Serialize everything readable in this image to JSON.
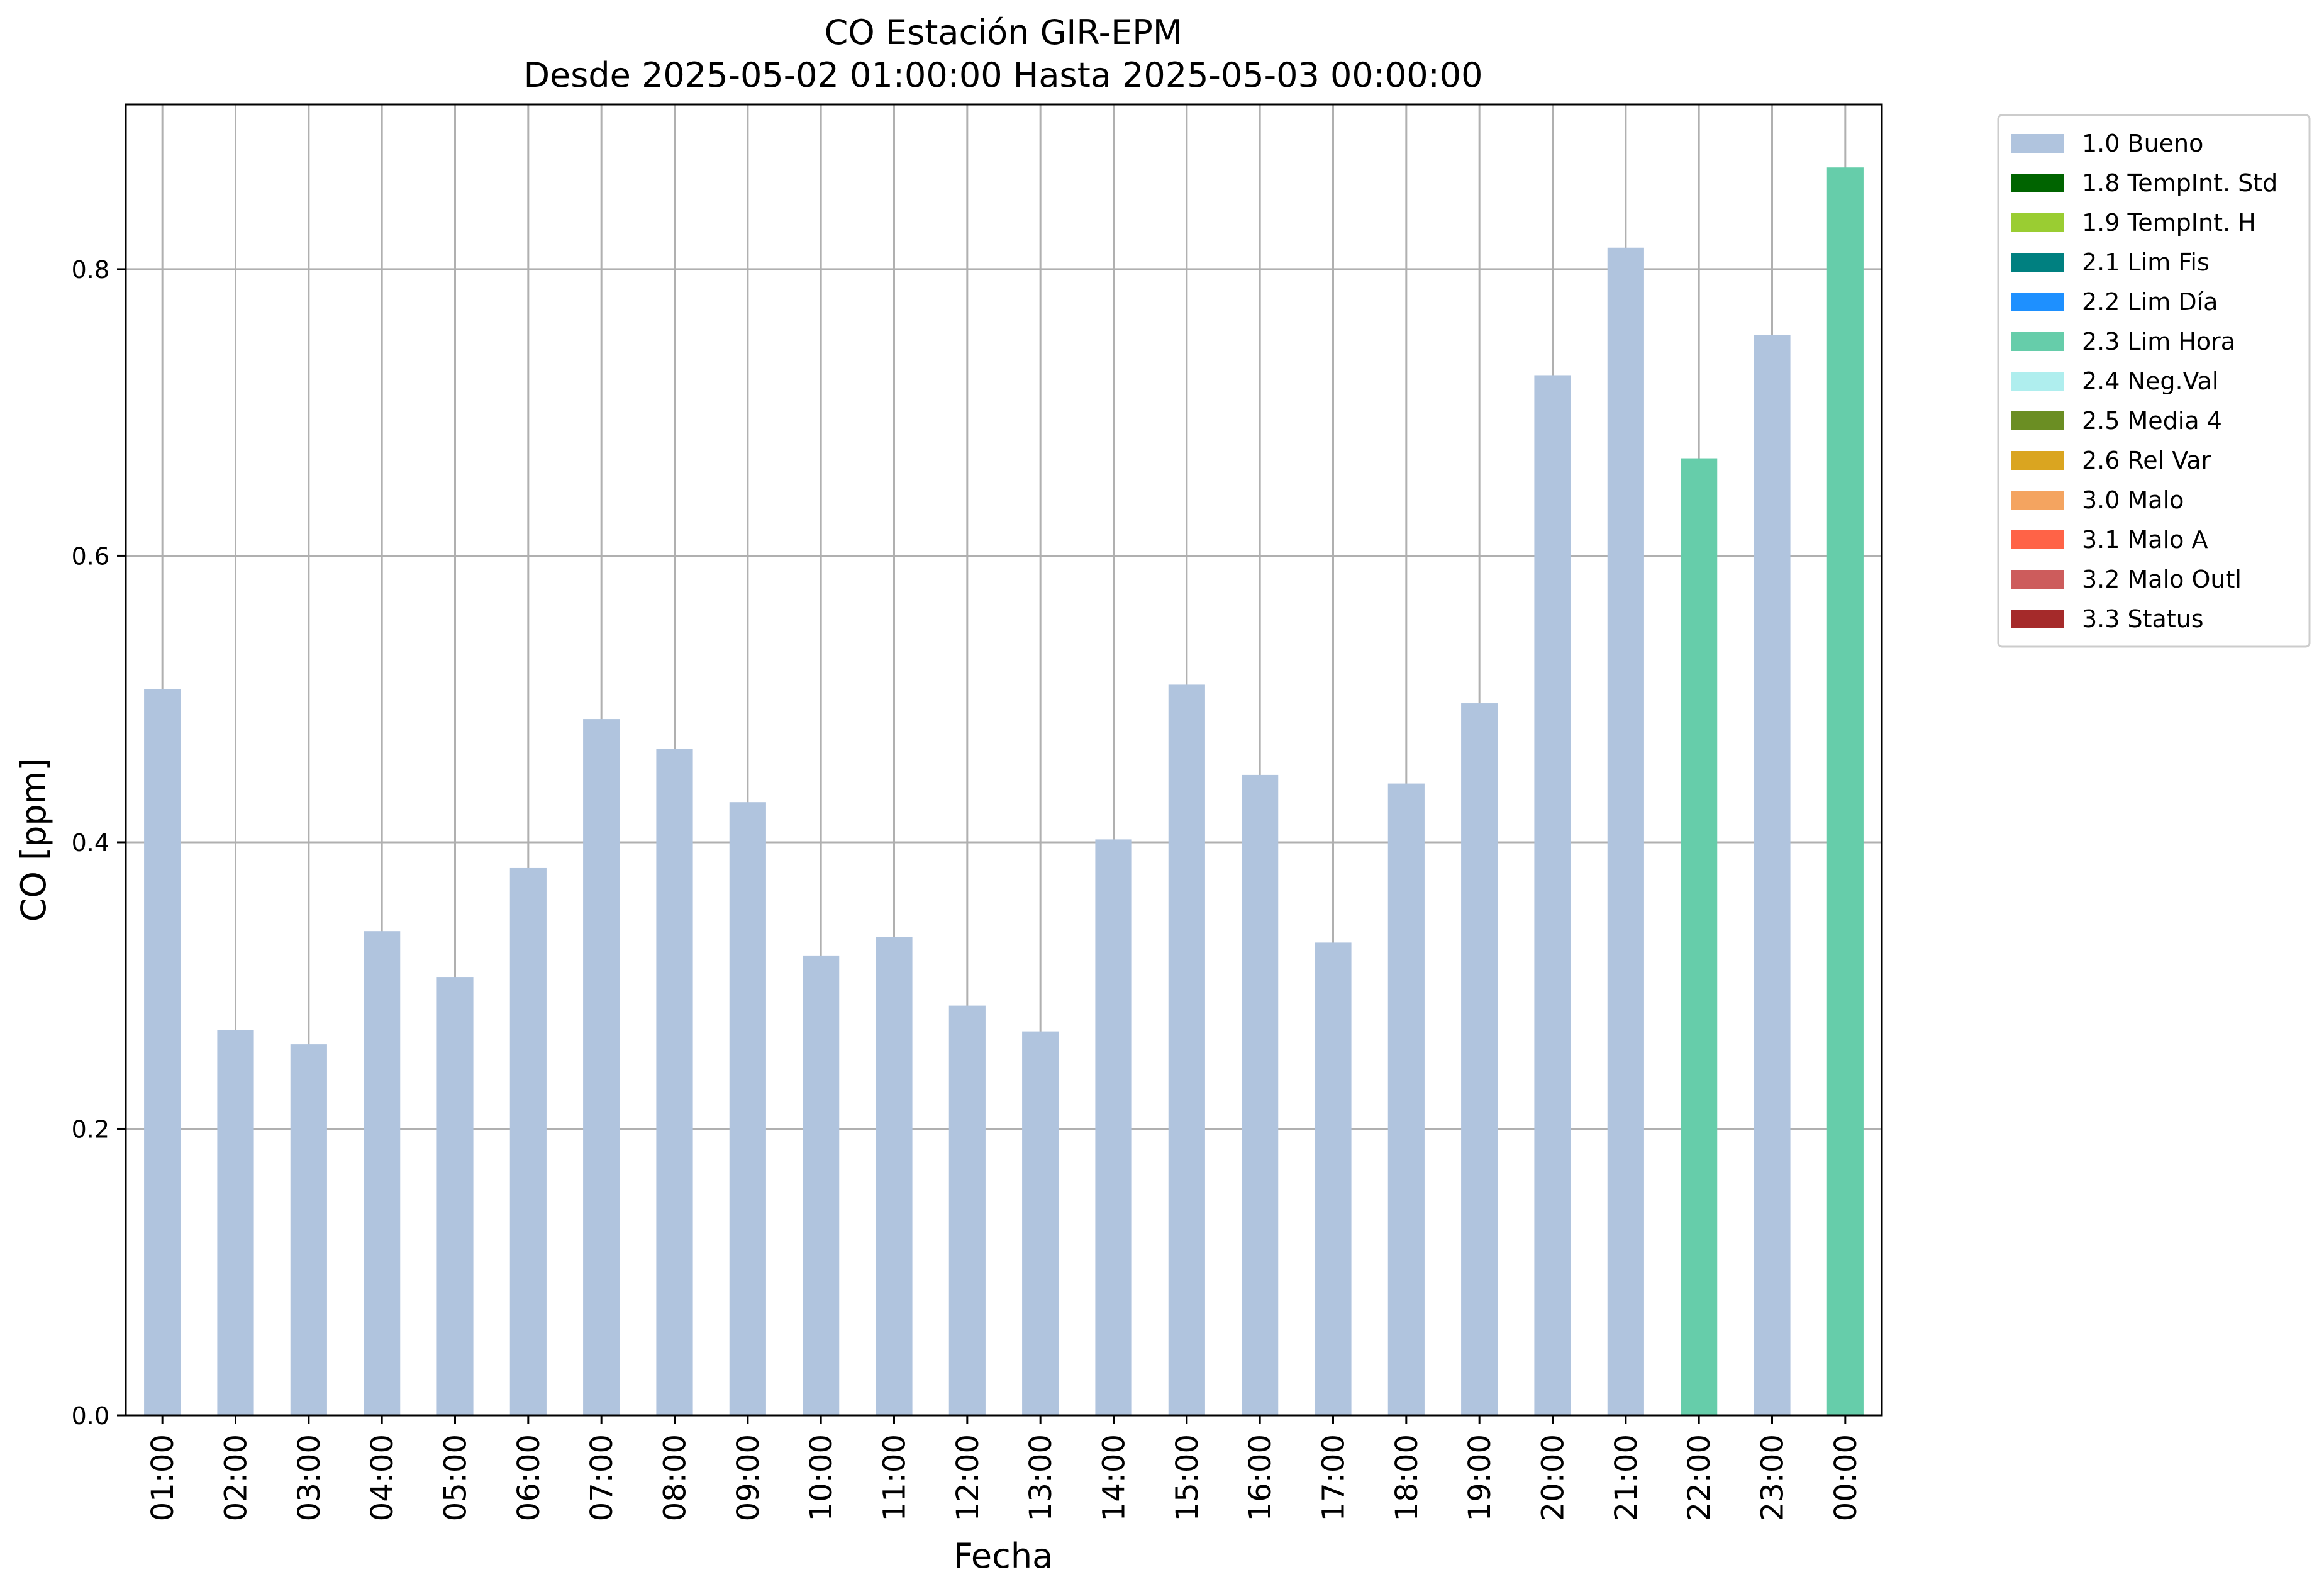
{
  "chart_data": {
    "type": "bar",
    "title": "CO Estación GIR-EPM",
    "subtitle": "Desde 2025-05-02 01:00:00 Hasta 2025-05-03 00:00:00",
    "xlabel": "Fecha",
    "ylabel": "CO [ppm]",
    "ylim": [
      0,
      0.915
    ],
    "yticks": [
      "0.0",
      "0.2",
      "0.4",
      "0.6",
      "0.8"
    ],
    "grid": true,
    "legend_position": "outside-top-right",
    "categories": [
      "01:00",
      "02:00",
      "03:00",
      "04:00",
      "05:00",
      "06:00",
      "07:00",
      "08:00",
      "09:00",
      "10:00",
      "11:00",
      "12:00",
      "13:00",
      "14:00",
      "15:00",
      "16:00",
      "17:00",
      "18:00",
      "19:00",
      "20:00",
      "21:00",
      "22:00",
      "23:00",
      "00:00"
    ],
    "values": [
      0.507,
      0.269,
      0.259,
      0.338,
      0.306,
      0.382,
      0.486,
      0.465,
      0.428,
      0.321,
      0.334,
      0.286,
      0.268,
      0.402,
      0.51,
      0.447,
      0.33,
      0.441,
      0.497,
      0.726,
      0.815,
      0.668,
      0.754,
      0.871
    ],
    "flags": [
      "1.0 Bueno",
      "1.0 Bueno",
      "1.0 Bueno",
      "1.0 Bueno",
      "1.0 Bueno",
      "1.0 Bueno",
      "1.0 Bueno",
      "1.0 Bueno",
      "1.0 Bueno",
      "1.0 Bueno",
      "1.0 Bueno",
      "1.0 Bueno",
      "1.0 Bueno",
      "1.0 Bueno",
      "1.0 Bueno",
      "1.0 Bueno",
      "1.0 Bueno",
      "1.0 Bueno",
      "1.0 Bueno",
      "1.0 Bueno",
      "1.0 Bueno",
      "2.3 Lim Hora",
      "1.0 Bueno",
      "2.3 Lim Hora"
    ],
    "legend": [
      {
        "label": "1.0 Bueno",
        "color": "#b0c4de"
      },
      {
        "label": "1.8 TempInt. Std",
        "color": "#006400"
      },
      {
        "label": "1.9 TempInt. H",
        "color": "#9acd32"
      },
      {
        "label": "2.1 Lim Fis",
        "color": "#008080"
      },
      {
        "label": "2.2 Lim Día",
        "color": "#1e90ff"
      },
      {
        "label": "2.3 Lim Hora",
        "color": "#66cdaa"
      },
      {
        "label": "2.4 Neg.Val",
        "color": "#afeeee"
      },
      {
        "label": "2.5 Media 4",
        "color": "#6b8e23"
      },
      {
        "label": "2.6 Rel Var",
        "color": "#daa520"
      },
      {
        "label": "3.0 Malo",
        "color": "#f4a460"
      },
      {
        "label": "3.1 Malo A",
        "color": "#ff6347"
      },
      {
        "label": "3.2 Malo Outl",
        "color": "#cd5c5c"
      },
      {
        "label": "3.3 Status",
        "color": "#a52a2a"
      }
    ]
  }
}
